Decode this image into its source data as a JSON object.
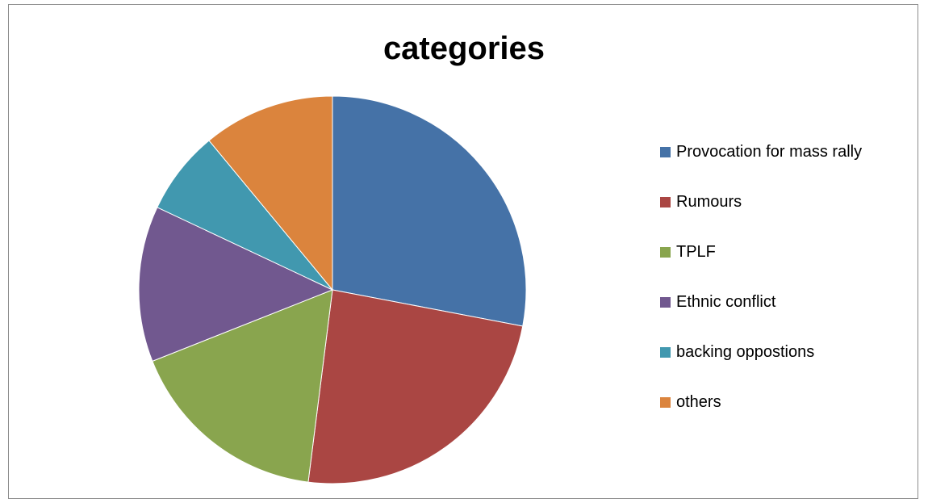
{
  "chart_data": {
    "type": "pie",
    "title": "categories",
    "categories": [
      "Provocation for mass rally",
      "Rumours",
      "TPLF",
      "Ethnic conflict",
      "backing oppostions",
      "others"
    ],
    "values": [
      28,
      24,
      17,
      13,
      7,
      11
    ],
    "colors": [
      "#4572A7",
      "#AA4643",
      "#89A54E",
      "#71588F",
      "#4198AF",
      "#DB843D"
    ],
    "start_angle_deg": 0,
    "direction": "clockwise",
    "legend_position": "right"
  }
}
